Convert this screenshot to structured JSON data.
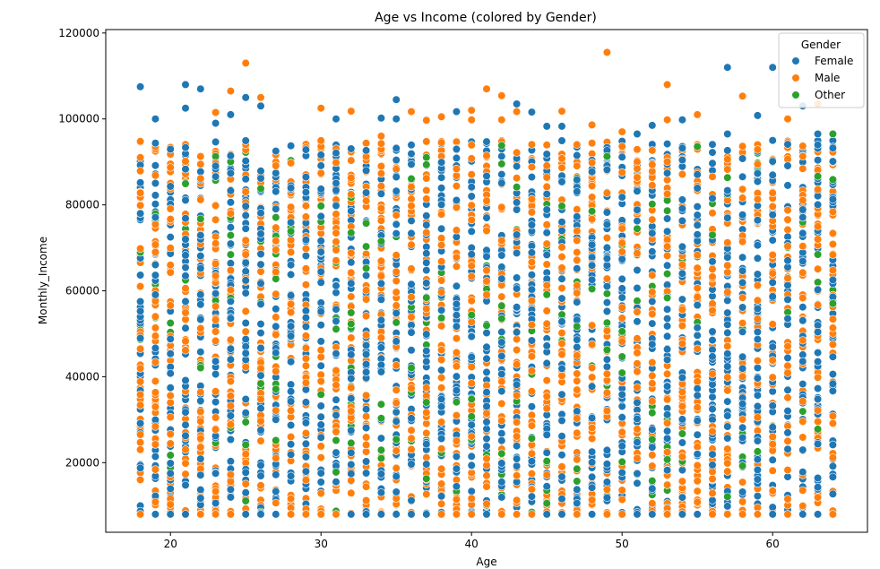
{
  "chart_data": {
    "type": "scatter",
    "title": "Age vs Income (colored by Gender)",
    "xlabel": "Age",
    "ylabel": "Monthly_Income",
    "xlim": [
      15.7,
      66.3
    ],
    "ylim": [
      3800,
      120800
    ],
    "xticks": [
      20,
      30,
      40,
      50,
      60
    ],
    "yticks": [
      20000,
      40000,
      60000,
      80000,
      100000,
      120000
    ],
    "age_range": [
      18,
      64
    ],
    "income_range": [
      8000,
      95000
    ],
    "grid": false,
    "legend": {
      "title": "Gender",
      "placement": "top-right",
      "entries": [
        "Female",
        "Male",
        "Other"
      ]
    },
    "series": [
      {
        "name": "Female",
        "color": "#1f77b4"
      },
      {
        "name": "Male",
        "color": "#ff7f0e"
      },
      {
        "name": "Other",
        "color": "#2ca02c"
      }
    ],
    "outliers": [
      {
        "gender": "Female",
        "age": 18,
        "income": 107500
      },
      {
        "gender": "Female",
        "age": 19,
        "income": 100000
      },
      {
        "gender": "Female",
        "age": 21,
        "income": 108000
      },
      {
        "gender": "Female",
        "age": 21,
        "income": 102500
      },
      {
        "gender": "Female",
        "age": 22,
        "income": 107000
      },
      {
        "gender": "Male",
        "age": 23,
        "income": 101500
      },
      {
        "gender": "Female",
        "age": 23,
        "income": 99000
      },
      {
        "gender": "Male",
        "age": 24,
        "income": 106500
      },
      {
        "gender": "Female",
        "age": 24,
        "income": 101000
      },
      {
        "gender": "Male",
        "age": 25,
        "income": 113000
      },
      {
        "gender": "Female",
        "age": 25,
        "income": 105000
      },
      {
        "gender": "Male",
        "age": 26,
        "income": 105000
      },
      {
        "gender": "Female",
        "age": 26,
        "income": 103000
      },
      {
        "gender": "Male",
        "age": 30,
        "income": 102500
      },
      {
        "gender": "Female",
        "age": 31,
        "income": 100000
      },
      {
        "gender": "Male",
        "age": 32,
        "income": 101800
      },
      {
        "gender": "Female",
        "age": 34,
        "income": 100200
      },
      {
        "gender": "Male",
        "age": 34,
        "income": 96000
      },
      {
        "gender": "Female",
        "age": 35,
        "income": 104500
      },
      {
        "gender": "Female",
        "age": 35,
        "income": 100000
      },
      {
        "gender": "Male",
        "age": 36,
        "income": 101700
      },
      {
        "gender": "Male",
        "age": 37,
        "income": 99700
      },
      {
        "gender": "Male",
        "age": 38,
        "income": 100500
      },
      {
        "gender": "Female",
        "age": 39,
        "income": 101700
      },
      {
        "gender": "Male",
        "age": 40,
        "income": 102000
      },
      {
        "gender": "Male",
        "age": 40,
        "income": 99800
      },
      {
        "gender": "Male",
        "age": 41,
        "income": 107000
      },
      {
        "gender": "Female",
        "age": 41,
        "income": 94700
      },
      {
        "gender": "Male",
        "age": 42,
        "income": 105400
      },
      {
        "gender": "Male",
        "age": 42,
        "income": 99800
      },
      {
        "gender": "Female",
        "age": 43,
        "income": 103500
      },
      {
        "gender": "Male",
        "age": 43,
        "income": 101700
      },
      {
        "gender": "Female",
        "age": 44,
        "income": 101600
      },
      {
        "gender": "Female",
        "age": 45,
        "income": 98300
      },
      {
        "gender": "Male",
        "age": 46,
        "income": 101800
      },
      {
        "gender": "Female",
        "age": 46,
        "income": 98300
      },
      {
        "gender": "Male",
        "age": 48,
        "income": 98600
      },
      {
        "gender": "Male",
        "age": 49,
        "income": 115500
      },
      {
        "gender": "Male",
        "age": 50,
        "income": 97000
      },
      {
        "gender": "Female",
        "age": 51,
        "income": 96500
      },
      {
        "gender": "Female",
        "age": 52,
        "income": 98500
      },
      {
        "gender": "Male",
        "age": 53,
        "income": 108000
      },
      {
        "gender": "Male",
        "age": 53,
        "income": 99800
      },
      {
        "gender": "Female",
        "age": 54,
        "income": 99800
      },
      {
        "gender": "Male",
        "age": 55,
        "income": 101000
      },
      {
        "gender": "Female",
        "age": 57,
        "income": 112000
      },
      {
        "gender": "Female",
        "age": 57,
        "income": 96500
      },
      {
        "gender": "Male",
        "age": 58,
        "income": 105300
      },
      {
        "gender": "Female",
        "age": 59,
        "income": 100800
      },
      {
        "gender": "Female",
        "age": 60,
        "income": 112000
      },
      {
        "gender": "Male",
        "age": 61,
        "income": 100000
      },
      {
        "gender": "Female",
        "age": 62,
        "income": 103000
      },
      {
        "gender": "Male",
        "age": 63,
        "income": 103500
      },
      {
        "gender": "Female",
        "age": 63,
        "income": 96500
      },
      {
        "gender": "Green",
        "age": 64,
        "income": 96500
      }
    ]
  }
}
